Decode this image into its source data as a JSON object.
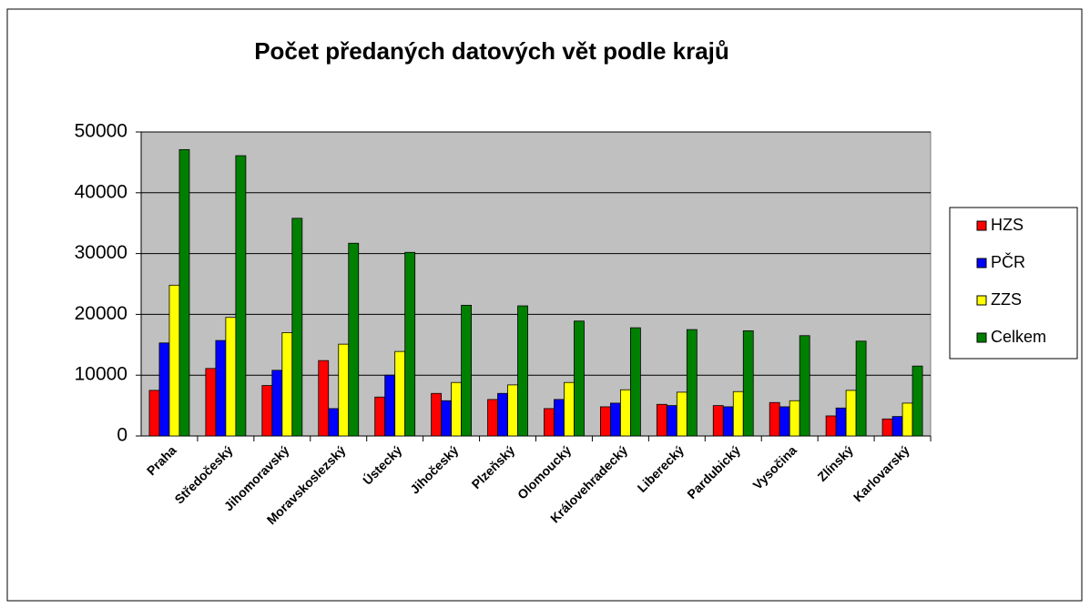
{
  "chart_data": {
    "type": "bar",
    "title": "Počet předaných datových vět podle krajů",
    "categories": [
      "Praha",
      "Středočeský",
      "Jihomoravský",
      "Moravskoslezský",
      "Ústecký",
      "Jihočeský",
      "Plzeňský",
      "Olomoucký",
      "Královehradecký",
      "Liberecký",
      "Pardubický",
      "Vysočina",
      "Zlínský",
      "Karlovarský"
    ],
    "series": [
      {
        "name": "HZS",
        "color": "#ff0000",
        "values": [
          7500,
          11100,
          8300,
          12400,
          6400,
          7000,
          6000,
          4500,
          4800,
          5200,
          5000,
          5500,
          3300,
          2800
        ]
      },
      {
        "name": "PČR",
        "color": "#0000ff",
        "values": [
          15300,
          15700,
          10800,
          4500,
          10000,
          5800,
          7000,
          6000,
          5400,
          5000,
          4800,
          4800,
          4600,
          3200
        ]
      },
      {
        "name": "ZZS",
        "color": "#ffff00",
        "values": [
          24800,
          19500,
          17000,
          15100,
          13900,
          8800,
          8400,
          8800,
          7600,
          7200,
          7300,
          5800,
          7500,
          5400
        ]
      },
      {
        "name": "Celkem",
        "color": "#008000",
        "values": [
          47100,
          46100,
          35800,
          31700,
          30200,
          21500,
          21400,
          18900,
          17800,
          17500,
          17300,
          16500,
          15600,
          11500
        ]
      }
    ],
    "ylim": [
      0,
      50000
    ],
    "yticks": [
      0,
      10000,
      20000,
      30000,
      40000,
      50000
    ],
    "grid": true,
    "legend": "right"
  }
}
